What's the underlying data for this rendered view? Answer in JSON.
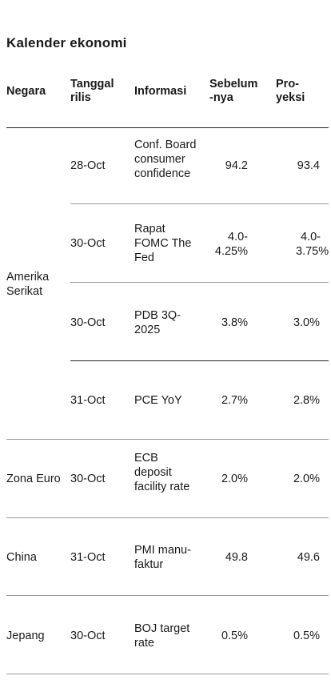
{
  "title": "Kalender ekonomi",
  "headers": {
    "country": "Negara",
    "date": "Tanggal rilis",
    "info": "Informasi",
    "previous": "Sebelum -nya",
    "projection": "Pro- yeksi"
  },
  "groups": [
    {
      "country": "Amerika Serikat"
    },
    {
      "country": "Zona Euro"
    },
    {
      "country": "China"
    },
    {
      "country": "Jepang"
    }
  ],
  "rows": [
    {
      "date": "28-Oct",
      "info": "Conf. Board consumer confidence",
      "previous": "94.2",
      "projection": "93.4"
    },
    {
      "date": "30-Oct",
      "info": "Rapat FOMC The Fed",
      "previous": "4.0- 4.25%",
      "projection": "4.0- 3.75%"
    },
    {
      "date": "30-Oct",
      "info": "PDB 3Q- 2025",
      "previous": "3.8%",
      "projection": "3.0%"
    },
    {
      "date": "31-Oct",
      "info": "PCE YoY",
      "previous": "2.7%",
      "projection": "2.8%"
    },
    {
      "date": "30-Oct",
      "info": "ECB deposit facility rate",
      "previous": "2.0%",
      "projection": "2.0%"
    },
    {
      "date": "31-Oct",
      "info": "PMI manu- faktur",
      "previous": "49.8",
      "projection": "49.6"
    },
    {
      "date": "30-Oct",
      "info": "BOJ target rate",
      "previous": "0.5%",
      "projection": "0.5%"
    }
  ]
}
